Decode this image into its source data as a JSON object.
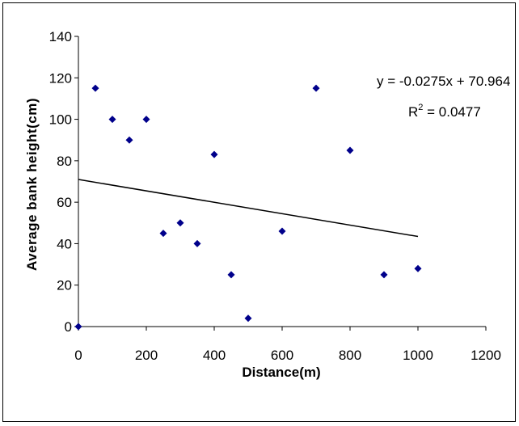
{
  "chart_data": {
    "type": "scatter",
    "xlabel": "Distance(m)",
    "ylabel": "Average bank height(cm)",
    "xlim": [
      0,
      1200
    ],
    "ylim": [
      0,
      140
    ],
    "x_ticks": [
      0,
      200,
      400,
      600,
      800,
      1000,
      1200
    ],
    "y_ticks": [
      0,
      20,
      40,
      60,
      80,
      100,
      120,
      140
    ],
    "x_tick_labels": [
      "0",
      "200",
      "400",
      "600",
      "800",
      "1000",
      "1200"
    ],
    "y_tick_labels": [
      "0",
      "20",
      "40",
      "60",
      "80",
      "100",
      "120",
      "140"
    ],
    "grid": false,
    "legend": "none",
    "marker": "diamond",
    "marker_color": "#00008B",
    "points": [
      {
        "x": 0,
        "y": 0
      },
      {
        "x": 50,
        "y": 115
      },
      {
        "x": 100,
        "y": 100
      },
      {
        "x": 150,
        "y": 90
      },
      {
        "x": 200,
        "y": 100
      },
      {
        "x": 250,
        "y": 45
      },
      {
        "x": 300,
        "y": 50
      },
      {
        "x": 350,
        "y": 40
      },
      {
        "x": 400,
        "y": 83
      },
      {
        "x": 450,
        "y": 25
      },
      {
        "x": 500,
        "y": 4
      },
      {
        "x": 600,
        "y": 46
      },
      {
        "x": 700,
        "y": 115
      },
      {
        "x": 800,
        "y": 85
      },
      {
        "x": 900,
        "y": 25
      },
      {
        "x": 1000,
        "y": 28
      }
    ],
    "trendline": {
      "type": "linear",
      "slope": -0.0275,
      "intercept": 70.964,
      "x_range": [
        0,
        1000
      ],
      "color": "#000000"
    },
    "annotations": {
      "equation": "y = -0.0275x + 70.964",
      "r_squared_prefix": "R",
      "r_squared_sup": "2",
      "r_squared_suffix": " = 0.0477"
    }
  }
}
